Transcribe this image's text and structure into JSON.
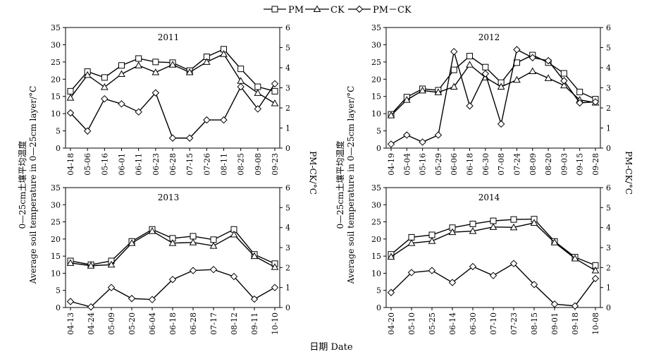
{
  "legend": [
    {
      "label": "PM",
      "marker": "square"
    },
    {
      "label": "CK",
      "marker": "triangle"
    },
    {
      "label": "PM－CK",
      "marker": "diamond"
    }
  ],
  "axes": {
    "xlabel": "日期 Date",
    "ylabel_left_cn": "0—25cm土壤平均温度",
    "ylabel_left_en": "Average soil temperature in 0—25cm layer/°C",
    "ylabel_right": "PM-CK/°C"
  },
  "chart_data": [
    {
      "type": "line",
      "title": "2011",
      "categories": [
        "04-18",
        "05-06",
        "05-16",
        "06-01",
        "06-11",
        "06-23",
        "06-28",
        "07-15",
        "07-26",
        "08-11",
        "08-25",
        "09-08",
        "09-23"
      ],
      "ylim": [
        0,
        35
      ],
      "y2lim": [
        0,
        6
      ],
      "series": [
        {
          "name": "PM",
          "axis": "left",
          "values": [
            16.5,
            22.2,
            20.5,
            24,
            26,
            25,
            24.8,
            22.5,
            26.5,
            28.7,
            23,
            17.8,
            16.5
          ]
        },
        {
          "name": "CK",
          "axis": "left",
          "values": [
            14.6,
            21.2,
            17.7,
            21.5,
            24,
            22,
            24.2,
            22,
            25,
            27.3,
            19.5,
            16,
            13
          ]
        },
        {
          "name": "PM－CK",
          "axis": "right",
          "values": [
            1.75,
            0.85,
            2.45,
            2.2,
            1.8,
            2.75,
            0.5,
            0.5,
            1.4,
            1.4,
            3.05,
            1.95,
            3.2
          ]
        }
      ]
    },
    {
      "type": "line",
      "title": "2012",
      "categories": [
        "04-19",
        "05-04",
        "05-16",
        "05-29",
        "06-06",
        "06-18",
        "06-30",
        "07-08",
        "07-24",
        "08-09",
        "08-20",
        "09-03",
        "09-15",
        "09-28"
      ],
      "ylim": [
        0,
        35
      ],
      "y2lim": [
        0,
        6
      ],
      "series": [
        {
          "name": "PM",
          "axis": "left",
          "values": [
            9.8,
            14.8,
            17.2,
            16.8,
            22.7,
            26.7,
            23.5,
            19,
            24.8,
            27,
            24.8,
            21.7,
            16.3,
            14.2
          ]
        },
        {
          "name": "CK",
          "axis": "left",
          "values": [
            9.5,
            14,
            16.7,
            16.2,
            17.8,
            24.2,
            20.5,
            17.8,
            19.8,
            22.3,
            20.3,
            18.2,
            14,
            13.2
          ]
        },
        {
          "name": "PM－CK",
          "axis": "right",
          "values": [
            0.2,
            0.65,
            0.3,
            0.65,
            4.8,
            2.1,
            3.7,
            1.2,
            4.9,
            4.5,
            4.35,
            3.35,
            2.25,
            2.3
          ]
        }
      ]
    },
    {
      "type": "line",
      "title": "2013",
      "categories": [
        "04-13",
        "04-24",
        "05-09",
        "05-20",
        "06-04",
        "06-18",
        "06-28",
        "07-17",
        "08-12",
        "09-11",
        "10-10"
      ],
      "ylim": [
        0,
        35
      ],
      "y2lim": [
        0,
        6
      ],
      "series": [
        {
          "name": "PM",
          "axis": "left",
          "values": [
            13.6,
            12.5,
            13.6,
            19.3,
            22.8,
            20.2,
            20.8,
            19.8,
            22.8,
            15.5,
            12.8
          ]
        },
        {
          "name": "CK",
          "axis": "left",
          "values": [
            13,
            12.2,
            12.5,
            18.8,
            22.3,
            18.8,
            19,
            18,
            21.3,
            15,
            11.8
          ]
        },
        {
          "name": "PM－CK",
          "axis": "right",
          "values": [
            0.3,
            0.03,
            1,
            0.45,
            0.4,
            1.4,
            1.85,
            1.9,
            1.55,
            0.42,
            1
          ]
        }
      ]
    },
    {
      "type": "line",
      "title": "2014",
      "categories": [
        "04-20",
        "05-10",
        "05-25",
        "06-14",
        "06-30",
        "07-10",
        "07-23",
        "08-15",
        "09-01",
        "09-18",
        "10-08"
      ],
      "ylim": [
        0,
        35
      ],
      "y2lim": [
        0,
        6
      ],
      "series": [
        {
          "name": "PM",
          "axis": "left",
          "values": [
            15.5,
            20.5,
            21.2,
            23.3,
            24.4,
            25.3,
            25.7,
            25.8,
            19.3,
            14.7,
            12.3
          ]
        },
        {
          "name": "CK",
          "axis": "left",
          "values": [
            14.8,
            18.8,
            19.4,
            22,
            22.3,
            23.5,
            23.4,
            24.7,
            19,
            14.3,
            10.8
          ]
        },
        {
          "name": "PM－CK",
          "axis": "right",
          "values": [
            0.75,
            1.75,
            1.85,
            1.25,
            2.05,
            1.6,
            2.2,
            1.15,
            0.17,
            0.08,
            1.45
          ]
        }
      ]
    }
  ]
}
